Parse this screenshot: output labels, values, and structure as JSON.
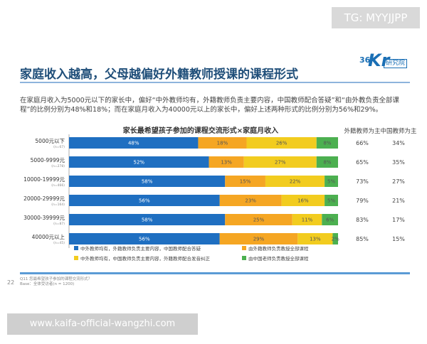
{
  "watermark_top": "TG: MYYJJPP",
  "title": "家庭收入越高，父母越偏好外籍教师授课的课程形式",
  "logo": {
    "number": "36",
    "letter": "Kr",
    "text": "研究院"
  },
  "intro": "在家庭月收入为5000元以下的家长中，偏好“中外教师均有，外籍教师负责主要内容，中国教师配合答疑”和“由外教负责全部课程”的比例分别为48%和18%；而在家庭月收入为40000元以上的家长中，偏好上述两种形式的比例分别为56%和29%。",
  "chart_data": {
    "type": "bar",
    "orientation": "horizontal",
    "stacked": true,
    "title": "家长最希望孩子参加的课程交流形式×家庭月收入",
    "categories": [
      "5000元以下",
      "5000-9999元",
      "10000-19999元",
      "20000-29999元",
      "30000-39999元",
      "40000元以上"
    ],
    "category_notes": [
      "(n=67)",
      "(n=278)",
      "(n=466)",
      "(n=164)",
      "(n=87)",
      "(n=45)"
    ],
    "series": [
      {
        "name": "中外教师均有，外籍教师负责主要内容，中国教师配合答疑",
        "color": "#1f6fc1",
        "values": [
          48,
          52,
          58,
          56,
          58,
          56
        ]
      },
      {
        "name": "由外籍教师负责教授全部课程",
        "color": "#f5a623",
        "values": [
          18,
          13,
          15,
          23,
          25,
          29
        ]
      },
      {
        "name": "中外教师均有，中国教师负责主要内容，外籍教师配合发音纠正",
        "color": "#f2cc1f",
        "values": [
          26,
          27,
          22,
          16,
          11,
          13
        ]
      },
      {
        "name": "由中国老师负责教授全部课程",
        "color": "#4cb050",
        "values": [
          8,
          8,
          5,
          5,
          6,
          2
        ]
      }
    ],
    "side_columns": [
      {
        "header": "外籍教师为主",
        "values": [
          "66%",
          "65%",
          "73%",
          "79%",
          "83%",
          "85%"
        ]
      },
      {
        "header": "中国教师为主",
        "values": [
          "34%",
          "35%",
          "27%",
          "21%",
          "17%",
          "15%"
        ]
      }
    ],
    "xlim": [
      0,
      100
    ],
    "grid": false
  },
  "page_number": "22",
  "source_lines": [
    "Q11 您最希望孩子参加的课程交流形式？",
    "Base：全体受访者(n = 1200)"
  ],
  "watermark_bottom": "www.kaifa-official-wangzhi.com"
}
